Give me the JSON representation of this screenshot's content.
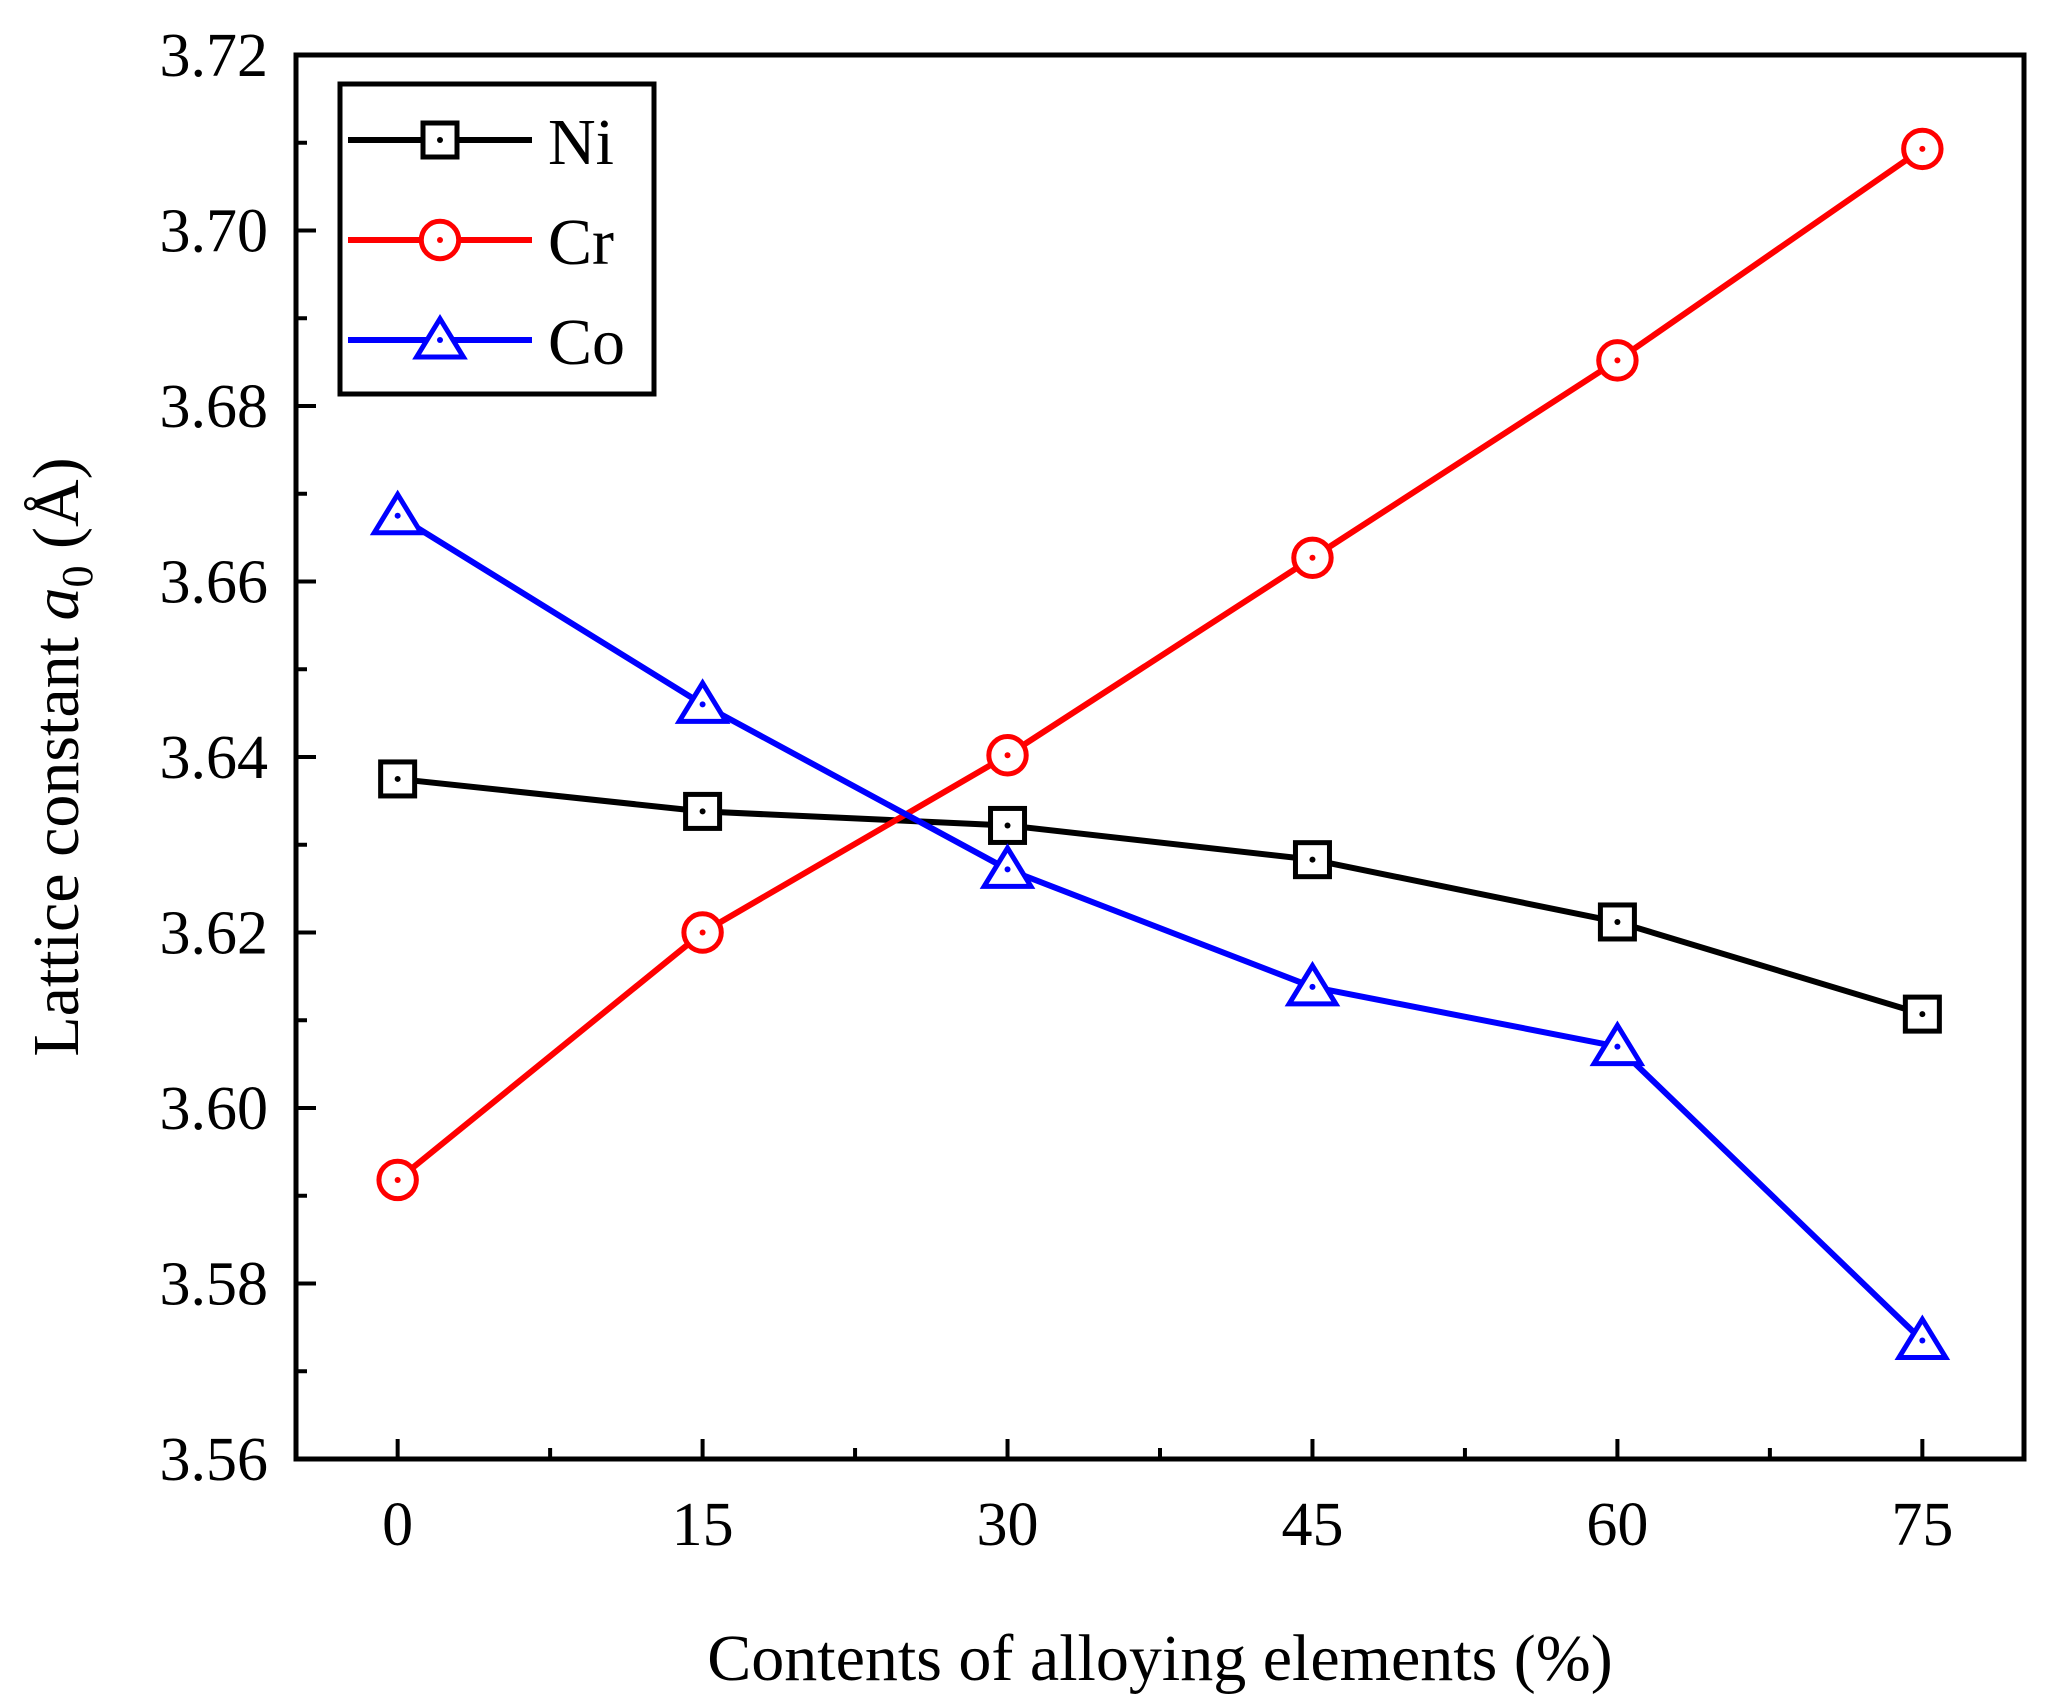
{
  "chart_data": {
    "type": "line",
    "title": "",
    "xlabel": "Contents of alloying elements (%)",
    "ylabel": {
      "prefix": "Lattice constant ",
      "symbol": "a",
      "subscript": "0",
      "suffix": " (Å)"
    },
    "x": [
      0,
      15,
      30,
      45,
      60,
      75
    ],
    "xticks": [
      "0",
      "15",
      "30",
      "45",
      "60",
      "75"
    ],
    "xlim": [
      -5,
      80
    ],
    "ylim": [
      3.56,
      3.72
    ],
    "yticks": [
      "3.56",
      "3.58",
      "3.60",
      "3.62",
      "3.64",
      "3.66",
      "3.68",
      "3.70",
      "3.72"
    ],
    "legend_position": "top-left",
    "grid": false,
    "series": [
      {
        "name": "Ni",
        "marker": "square",
        "color": "#000000",
        "values": [
          3.6375,
          3.6338,
          3.6322,
          3.6283,
          3.6212,
          3.6107
        ]
      },
      {
        "name": "Cr",
        "marker": "circle",
        "color": "#ff0000",
        "values": [
          3.5918,
          3.62,
          3.6402,
          3.6627,
          3.6852,
          3.7093
        ]
      },
      {
        "name": "Co",
        "marker": "triangle",
        "color": "#0000ff",
        "values": [
          3.6675,
          3.646,
          3.6272,
          3.6138,
          3.607,
          3.5735
        ]
      }
    ]
  }
}
